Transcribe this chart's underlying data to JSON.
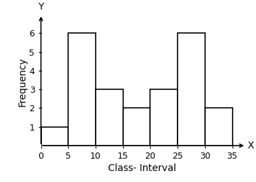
{
  "bar_edges": [
    0,
    5,
    10,
    15,
    20,
    25,
    30,
    35
  ],
  "bar_heights": [
    1,
    6,
    3,
    2,
    3,
    6,
    2
  ],
  "bar_color": "#ffffff",
  "bar_edgecolor": "#000000",
  "bar_linewidth": 1.2,
  "xlim": [
    0,
    37
  ],
  "ylim": [
    0,
    6.8
  ],
  "xticks": [
    0,
    5,
    10,
    15,
    20,
    25,
    30,
    35
  ],
  "yticks": [
    1,
    2,
    3,
    4,
    5,
    6
  ],
  "xlabel": "Class- Interval",
  "ylabel": "Frequency",
  "x_axis_label": "X",
  "y_axis_label": "Y",
  "background_color": "#ffffff",
  "plot_background": "#ffffff",
  "label_fontsize": 10,
  "tick_fontsize": 9,
  "border_color": "#aaaaaa",
  "border_linewidth": 1.0
}
